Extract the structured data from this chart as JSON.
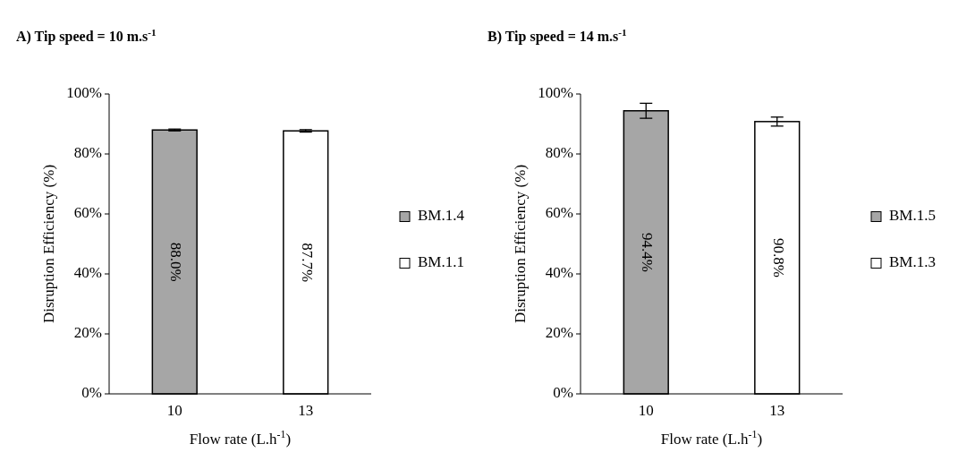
{
  "chart_data": [
    {
      "type": "bar",
      "title": "A) Tip speed = 10 m.s$^{-1}$",
      "xlabel": "Flow rate (L.h$^{-1}$)",
      "ylabel": "Disruption  Efficiency  (%)",
      "categories": [
        "10",
        "13"
      ],
      "series": [
        {
          "name": "BM.1.4",
          "color": "#a6a6a6",
          "values": [
            88.0,
            null
          ],
          "errors": [
            0.3,
            null
          ],
          "value_labels": [
            "88.0%",
            null
          ]
        },
        {
          "name": "BM.1.1",
          "color": "#ffffff",
          "values": [
            null,
            87.7
          ],
          "errors": [
            null,
            0.4
          ],
          "value_labels": [
            null,
            "87.7%"
          ]
        }
      ],
      "ylim": [
        0,
        100
      ],
      "yticks": [
        {
          "value": 0,
          "label": "0%"
        },
        {
          "value": 20,
          "label": "20%"
        },
        {
          "value": 40,
          "label": "40%"
        },
        {
          "value": 60,
          "label": "60%"
        },
        {
          "value": 80,
          "label": "80%"
        },
        {
          "value": 100,
          "label": "100%"
        }
      ],
      "legend": "right",
      "grid": false
    },
    {
      "type": "bar",
      "title": "B) Tip speed = 14 m.s$^{-1}$",
      "xlabel": "Flow rate (L.h$^{-1}$)",
      "ylabel": "Disruption  Efficiency  (%)",
      "categories": [
        "10",
        "13"
      ],
      "series": [
        {
          "name": "BM.1.5",
          "color": "#a6a6a6",
          "values": [
            94.4,
            null
          ],
          "errors": [
            2.5,
            null
          ],
          "value_labels": [
            "94.4%",
            null
          ]
        },
        {
          "name": "BM.1.3",
          "color": "#ffffff",
          "values": [
            null,
            90.8
          ],
          "errors": [
            null,
            1.5
          ],
          "value_labels": [
            null,
            "90.8%"
          ]
        }
      ],
      "ylim": [
        0,
        100
      ],
      "yticks": [
        {
          "value": 0,
          "label": "0%"
        },
        {
          "value": 20,
          "label": "20%"
        },
        {
          "value": 40,
          "label": "40%"
        },
        {
          "value": 60,
          "label": "60%"
        },
        {
          "value": 80,
          "label": "80%"
        },
        {
          "value": 100,
          "label": "100%"
        }
      ],
      "legend": "right",
      "grid": false
    }
  ]
}
